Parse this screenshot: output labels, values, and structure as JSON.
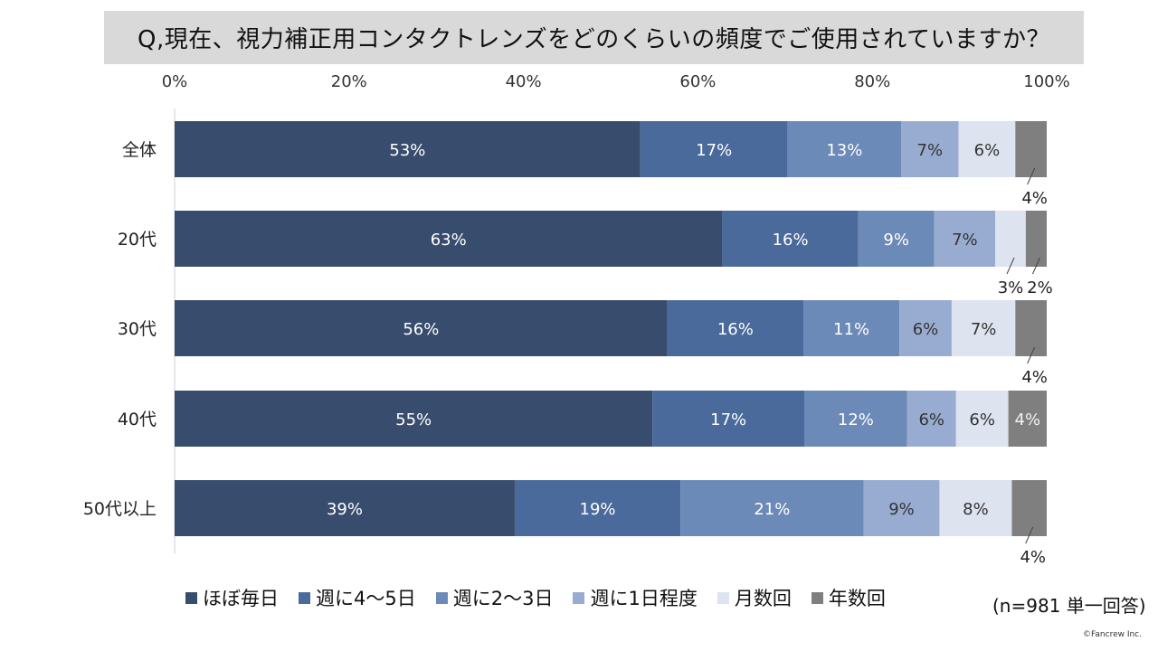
{
  "chart_data": {
    "type": "bar",
    "orientation": "horizontal",
    "stacked": "percent",
    "title": "Q,現在、視力補正用コンタクトレンズをどのくらいの頻度でご使用されていますか？",
    "categories": [
      "全体",
      "20代",
      "30代",
      "40代",
      "50代以上"
    ],
    "x_ticks": [
      "0%",
      "20%",
      "40%",
      "60%",
      "80%",
      "100%"
    ],
    "xlim": [
      0,
      100
    ],
    "series": [
      {
        "name": "ほぼ毎日",
        "color": "#384d6d",
        "values": [
          53.4,
          62.8,
          56.5,
          54.8,
          39.0
        ],
        "labels": [
          "53%",
          "63%",
          "56%",
          "55%",
          "39%"
        ]
      },
      {
        "name": "週に4～5日",
        "color": "#4a6a9b",
        "values": [
          16.9,
          15.6,
          15.6,
          17.4,
          19.0
        ],
        "labels": [
          "17%",
          "16%",
          "16%",
          "17%",
          "19%"
        ]
      },
      {
        "name": "週に2～3日",
        "color": "#6c8ab7",
        "values": [
          13.0,
          8.7,
          11.0,
          11.8,
          21.0
        ],
        "labels": [
          "13%",
          "9%",
          "11%",
          "12%",
          "21%"
        ]
      },
      {
        "name": "週に1日程度",
        "color": "#98acd1",
        "values": [
          6.6,
          7.0,
          6.0,
          5.6,
          8.7
        ],
        "labels": [
          "7%",
          "7%",
          "6%",
          "6%",
          "9%"
        ]
      },
      {
        "name": "月数回",
        "color": "#dde3ef",
        "values": [
          6.5,
          3.5,
          7.3,
          6.0,
          8.3
        ],
        "labels": [
          "6%",
          "3%",
          "7%",
          "6%",
          "8%"
        ]
      },
      {
        "name": "年数回",
        "color": "#7f7f7f",
        "values": [
          3.6,
          2.4,
          3.6,
          4.4,
          4.0
        ],
        "labels": [
          "4%",
          "2%",
          "4%",
          "4%",
          "4%"
        ]
      }
    ]
  },
  "note": "(n=981 単一回答)",
  "copyright": "©Fancrew Inc."
}
